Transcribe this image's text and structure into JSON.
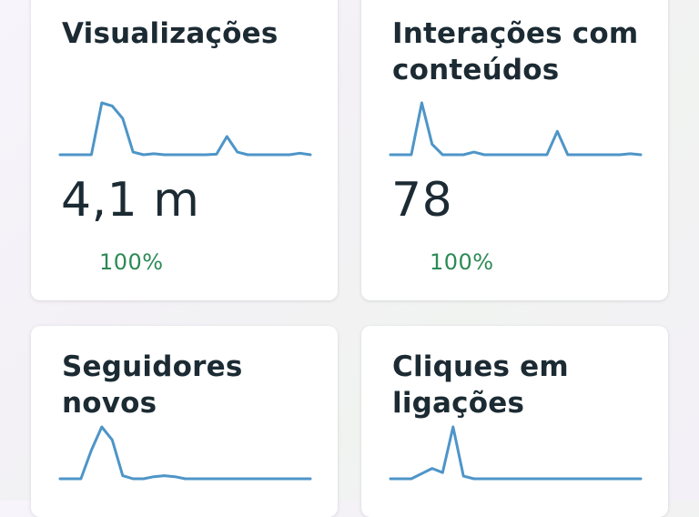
{
  "cards": [
    {
      "title": "Visualizações",
      "value": "4,1 m",
      "change": "100%",
      "trend": [
        0,
        0,
        0,
        0,
        1,
        0.94,
        0.7,
        0.05,
        0,
        0.02,
        0,
        0,
        0,
        0,
        0,
        0.01,
        0.35,
        0.05,
        0,
        0,
        0,
        0,
        0,
        0.03,
        0
      ]
    },
    {
      "title": "Interações com conteúdos",
      "value": "78",
      "change": "100%",
      "trend": [
        0,
        0,
        0,
        1,
        0.2,
        0,
        0,
        0,
        0.05,
        0,
        0,
        0,
        0,
        0,
        0,
        0,
        0.45,
        0,
        0,
        0,
        0,
        0,
        0,
        0.02,
        0
      ]
    },
    {
      "title": "Seguidores novos",
      "value": "",
      "change": "",
      "trend": [
        0,
        0,
        0,
        0.55,
        1,
        0.75,
        0.06,
        0,
        0,
        0.04,
        0.06,
        0.04,
        0,
        0,
        0,
        0,
        0,
        0,
        0,
        0,
        0,
        0,
        0,
        0,
        0
      ]
    },
    {
      "title": "Cliques em ligações",
      "value": "",
      "change": "",
      "trend": [
        0,
        0,
        0,
        0.1,
        0.2,
        0.12,
        1,
        0.05,
        0,
        0,
        0,
        0,
        0,
        0,
        0,
        0,
        0,
        0,
        0,
        0,
        0,
        0,
        0,
        0,
        0
      ]
    }
  ],
  "colors": {
    "line": "#4e95c8",
    "positive": "#2c8a56",
    "text": "#1c2b33"
  }
}
